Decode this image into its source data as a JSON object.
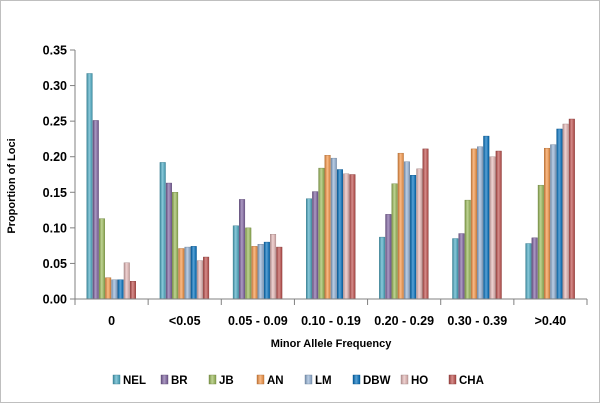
{
  "chart_data": {
    "type": "bar",
    "xlabel": "Minor Allele Frequency",
    "ylabel": "Proportion of Loci",
    "ylim": [
      0,
      0.35
    ],
    "yticks": [
      "0.00",
      "0.05",
      "0.10",
      "0.15",
      "0.20",
      "0.25",
      "0.30",
      "0.35"
    ],
    "grid": false,
    "legend_position": "bottom",
    "categories": [
      "0",
      "<0.05",
      "0.05 - 0.09",
      "0.10 - 0.19",
      "0.20 - 0.29",
      "0.30 - 0.39",
      ">0.40"
    ],
    "series": [
      {
        "name": "NEL",
        "color": "#4bacc6",
        "values": [
          0.317,
          0.192,
          0.103,
          0.141,
          0.087,
          0.085,
          0.078
        ]
      },
      {
        "name": "BR",
        "color": "#8064a2",
        "values": [
          0.251,
          0.163,
          0.14,
          0.151,
          0.119,
          0.092,
          0.086
        ]
      },
      {
        "name": "JB",
        "color": "#9bbb59",
        "values": [
          0.113,
          0.15,
          0.1,
          0.184,
          0.162,
          0.139,
          0.16
        ]
      },
      {
        "name": "AN",
        "color": "#f79646",
        "values": [
          0.03,
          0.071,
          0.074,
          0.202,
          0.205,
          0.211,
          0.212
        ]
      },
      {
        "name": "LM",
        "color": "#95b3d7",
        "values": [
          0.027,
          0.073,
          0.077,
          0.198,
          0.193,
          0.214,
          0.217
        ]
      },
      {
        "name": "DBW",
        "color": "#0070c0",
        "values": [
          0.027,
          0.074,
          0.08,
          0.182,
          0.174,
          0.229,
          0.239
        ]
      },
      {
        "name": "HO",
        "color": "#e6b9b8",
        "values": [
          0.051,
          0.054,
          0.091,
          0.176,
          0.183,
          0.2,
          0.246
        ]
      },
      {
        "name": "CHA",
        "color": "#c0504d",
        "values": [
          0.025,
          0.059,
          0.073,
          0.175,
          0.211,
          0.208,
          0.253
        ]
      }
    ]
  }
}
